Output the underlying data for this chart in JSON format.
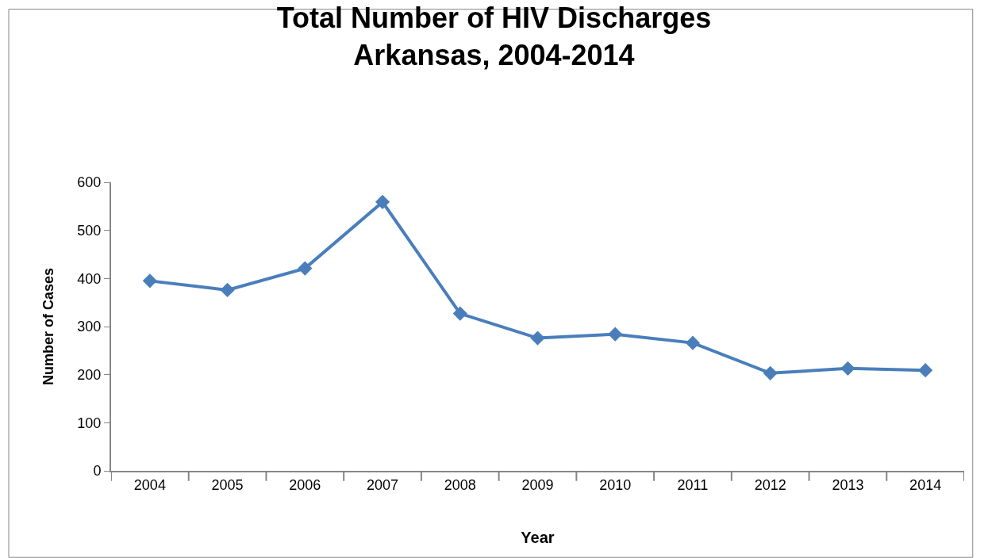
{
  "chart_data": {
    "type": "line",
    "title": "Total Number of HIV Discharges\nArkansas, 2004-2014",
    "xlabel": "Year",
    "ylabel": "Number of Cases",
    "categories": [
      "2004",
      "2005",
      "2006",
      "2007",
      "2008",
      "2009",
      "2010",
      "2011",
      "2012",
      "2013",
      "2014"
    ],
    "series": [
      {
        "color": "#4a7ebb",
        "values": [
          395,
          376,
          421,
          559,
          327,
          276,
          284,
          266,
          203,
          213,
          209
        ]
      }
    ],
    "ylim": [
      0,
      600
    ],
    "yticks": [
      0,
      100,
      200,
      300,
      400,
      500,
      600
    ],
    "marker": "diamond",
    "line_style": "solid"
  }
}
